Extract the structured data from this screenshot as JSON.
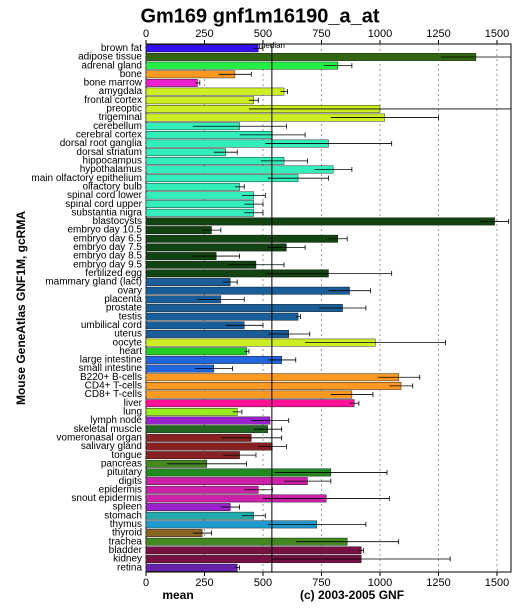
{
  "chart_data": {
    "type": "bar",
    "orientation": "horizontal",
    "title": "Gm169 gnf1m16190_a_at",
    "y_label": "Mouse GeneAtlas GNF1M, gcRMA",
    "x_label": "mean",
    "copyright": "(c) 2003-2005 GNF",
    "median_label": "median",
    "median": 538,
    "xlim": [
      0,
      1560
    ],
    "xticks": [
      0,
      250,
      500,
      750,
      1000,
      1250,
      1500
    ],
    "grid": true,
    "categories": [
      "brown fat",
      "adipose tissue",
      "adrenal gland",
      "bone",
      "bone marrow",
      "amygdala",
      "frontal cortex",
      "preoptic",
      "trigeminal",
      "cerebellum",
      "cerebral cortex",
      "dorsal root ganglia",
      "dorsal striatum",
      "hippocampus",
      "hypothalamus",
      "main olfactory epithelium",
      "olfactory bulb",
      "spinal cord lower",
      "spinal cord upper",
      "substantia nigra",
      "blastocysts",
      "embryo day 10.5",
      "embryo day 6.5",
      "embryo day 7.5",
      "embryo day 8.5",
      "embryo day 9.5",
      "fertilized egg",
      "mammary gland (lact)",
      "ovary",
      "placenta",
      "prostate",
      "testis",
      "umbilical cord",
      "uterus",
      "oocyte",
      "heart",
      "large intestine",
      "small intestine",
      "B220+ B-cells",
      "CD4+ T-cells",
      "CD8+ T-cells",
      "liver",
      "lung",
      "lymph node",
      "skeletal muscle",
      "vomeronasal organ",
      "salivary gland",
      "tongue",
      "pancreas",
      "pituitary",
      "digits",
      "epidermis",
      "snout epidermis",
      "spleen",
      "stomach",
      "thymus",
      "thyroid",
      "trachea",
      "bladder",
      "kidney",
      "retina"
    ],
    "values": [
      480,
      1410,
      820,
      380,
      220,
      590,
      460,
      1000,
      1020,
      400,
      540,
      780,
      340,
      590,
      800,
      650,
      400,
      460,
      460,
      460,
      1490,
      280,
      820,
      600,
      300,
      470,
      780,
      360,
      870,
      320,
      840,
      650,
      420,
      610,
      980,
      430,
      580,
      290,
      1080,
      1090,
      880,
      890,
      390,
      530,
      520,
      450,
      540,
      400,
      260,
      790,
      690,
      480,
      770,
      360,
      460,
      730,
      240,
      860,
      920,
      920,
      390
    ],
    "errors": [
      20,
      150,
      60,
      70,
      10,
      15,
      20,
      560,
      230,
      200,
      140,
      270,
      50,
      100,
      80,
      130,
      20,
      50,
      40,
      40,
      60,
      40,
      40,
      80,
      100,
      120,
      270,
      30,
      90,
      100,
      100,
      10,
      80,
      90,
      300,
      10,
      60,
      80,
      90,
      50,
      90,
      20,
      20,
      80,
      60,
      130,
      60,
      70,
      170,
      240,
      100,
      60,
      270,
      40,
      50,
      210,
      40,
      220,
      10,
      380,
      10
    ],
    "colors": [
      "#3311ee",
      "#336611",
      "#22ee44",
      "#ff9922",
      "#ee22cc",
      "#ccee22",
      "#ccee22",
      "#ccee22",
      "#ccee22",
      "#33eebb",
      "#33eebb",
      "#33eebb",
      "#33eebb",
      "#33eebb",
      "#33eebb",
      "#33eebb",
      "#33eebb",
      "#33eebb",
      "#33eebb",
      "#33eebb",
      "#114411",
      "#114411",
      "#114411",
      "#114411",
      "#114411",
      "#114411",
      "#114411",
      "#1a5e99",
      "#1a5e99",
      "#1a5e99",
      "#1a5e99",
      "#1a5e99",
      "#1a5e99",
      "#1a5e99",
      "#ccee22",
      "#22cc22",
      "#2266dd",
      "#2266dd",
      "#ff9922",
      "#ff9922",
      "#ff9922",
      "#ff1199",
      "#99ee22",
      "#9922cc",
      "#226622",
      "#882222",
      "#882222",
      "#882222",
      "#448822",
      "#228822",
      "#cc22aa",
      "#cc22aa",
      "#cc22aa",
      "#9922cc",
      "#22aaaa",
      "#2299cc",
      "#886622",
      "#448822",
      "#771144",
      "#771144",
      "#6622aa"
    ]
  }
}
